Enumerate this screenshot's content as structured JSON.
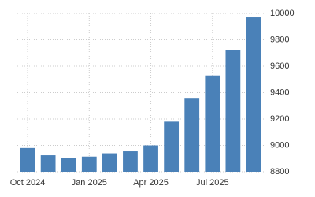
{
  "chart_data": {
    "type": "bar",
    "categories": [
      "Oct 2024",
      null,
      null,
      "Jan 2025",
      null,
      null,
      "Apr 2025",
      null,
      null,
      "Jul 2025",
      null,
      null
    ],
    "values": [
      8980,
      8925,
      8905,
      8915,
      8940,
      8955,
      9000,
      9180,
      9360,
      9530,
      9725,
      9970
    ],
    "color": "#4a81b8",
    "ylim": [
      8800,
      10000
    ],
    "yticks": [
      8800,
      9000,
      9200,
      9400,
      9600,
      9800,
      10000
    ],
    "grid": true,
    "y_axis_side": "right"
  }
}
